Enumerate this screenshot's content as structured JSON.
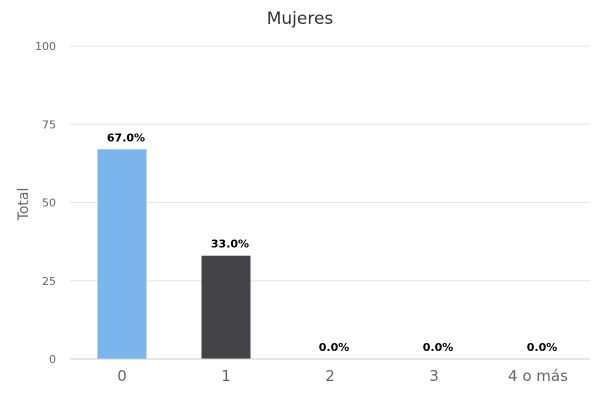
{
  "chart_data": {
    "type": "bar",
    "title": "Mujeres",
    "xlabel": "",
    "ylabel": "Total",
    "categories": [
      "0",
      "1",
      "2",
      "3",
      "4 o más"
    ],
    "values": [
      67.0,
      33.0,
      0.0,
      0.0,
      0.0
    ],
    "data_labels": [
      "67.0%",
      "33.0%",
      "0.0%",
      "0.0%",
      "0.0%"
    ],
    "colors": [
      "#7cb5ec",
      "#434348",
      "#90ed7d",
      "#f7a35c",
      "#8085e9"
    ],
    "ylim": [
      0,
      100
    ],
    "yticks": [
      0,
      25,
      50,
      75,
      100
    ],
    "grid": true,
    "legend": "none"
  }
}
